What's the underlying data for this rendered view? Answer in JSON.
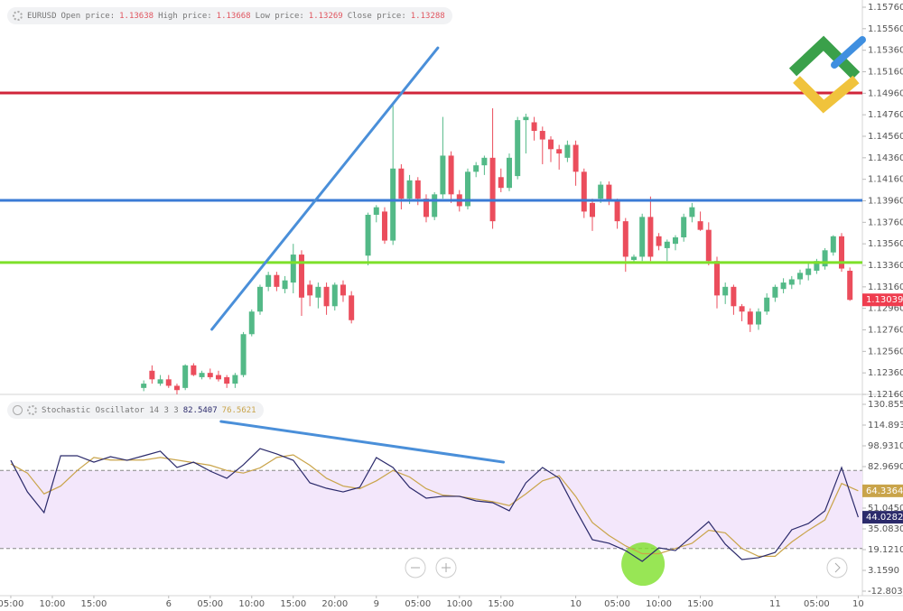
{
  "chart_data": [
    {
      "type": "candlestick",
      "header": {
        "symbol": "EURUSD",
        "fields": [
          {
            "label": "Open price:",
            "value": 1.13638
          },
          {
            "label": "High price:",
            "value": 1.13668
          },
          {
            "label": "Low price:",
            "value": 1.13269
          },
          {
            "label": "Close price:",
            "value": 1.13288
          }
        ]
      },
      "x": [
        16,
        17,
        18,
        19,
        20,
        21,
        22,
        23,
        24,
        25,
        26,
        27,
        28,
        29,
        30,
        31,
        32,
        33,
        34,
        35,
        36,
        37,
        38,
        39,
        40,
        41,
        43,
        44,
        45,
        46,
        47,
        48,
        49,
        50,
        51,
        52,
        53,
        54,
        55,
        56,
        57,
        58,
        59,
        60,
        61,
        62,
        63,
        64,
        65,
        66,
        67,
        68,
        69,
        70,
        71,
        72,
        73,
        74,
        75,
        76,
        77,
        78,
        79,
        80,
        81,
        82,
        83,
        84,
        85,
        86,
        87,
        88,
        89,
        90,
        91,
        92,
        93,
        94,
        95,
        96,
        97,
        98,
        99,
        100,
        101
      ],
      "open": [
        1.1222,
        1.1238,
        1.1226,
        1.123,
        1.1224,
        1.1222,
        1.1243,
        1.1232,
        1.1236,
        1.1234,
        1.1232,
        1.1226,
        1.1234,
        1.1272,
        1.1293,
        1.1316,
        1.1327,
        1.1314,
        1.132,
        1.1346,
        1.1318,
        1.1306,
        1.1316,
        1.1298,
        1.1318,
        1.1308,
        1.1345,
        1.1383,
        1.1386,
        1.1359,
        1.1426,
        1.1398,
        1.1415,
        1.1398,
        1.1381,
        1.1402,
        1.1438,
        1.1402,
        1.1391,
        1.1423,
        1.1429,
        1.1436,
        1.1418,
        1.1408,
        1.1419,
        1.1471,
        1.1469,
        1.1461,
        1.1453,
        1.1444,
        1.1436,
        1.1448,
        1.1423,
        1.1394,
        1.1398,
        1.1411,
        1.1396,
        1.1377,
        1.1341,
        1.1344,
        1.1381,
        1.1363,
        1.1352,
        1.1356,
        1.1362,
        1.1381,
        1.1377,
        1.1369,
        1.134,
        1.1308,
        1.1316,
        1.1298,
        1.1293,
        1.1281,
        1.1293,
        1.1306,
        1.1314,
        1.1318,
        1.1323,
        1.1327,
        1.1331,
        1.1335,
        1.1348,
        1.1363,
        1.1331
      ],
      "high": [
        1.1229,
        1.1243,
        1.1234,
        1.1234,
        1.1226,
        1.1244,
        1.1245,
        1.1238,
        1.124,
        1.1238,
        1.1234,
        1.1236,
        1.1274,
        1.1295,
        1.1318,
        1.133,
        1.133,
        1.1326,
        1.1356,
        1.135,
        1.1322,
        1.132,
        1.132,
        1.132,
        1.1322,
        1.1312,
        1.1385,
        1.1392,
        1.139,
        1.1485,
        1.143,
        1.142,
        1.1418,
        1.1402,
        1.1404,
        1.1474,
        1.1442,
        1.1406,
        1.1426,
        1.1432,
        1.1438,
        1.1482,
        1.1426,
        1.144,
        1.1474,
        1.1477,
        1.1474,
        1.1465,
        1.1456,
        1.1448,
        1.1452,
        1.1452,
        1.1426,
        1.1398,
        1.1414,
        1.1414,
        1.1398,
        1.138,
        1.1346,
        1.1384,
        1.14,
        1.1366,
        1.136,
        1.1364,
        1.1384,
        1.1394,
        1.1386,
        1.1376,
        1.1344,
        1.132,
        1.1318,
        1.13,
        1.1296,
        1.1296,
        1.131,
        1.1318,
        1.1324,
        1.1326,
        1.1332,
        1.1338,
        1.1342,
        1.1352,
        1.1364,
        1.1366,
        1.1334
      ],
      "low": [
        1.1219,
        1.1226,
        1.1224,
        1.1222,
        1.1216,
        1.122,
        1.1233,
        1.123,
        1.123,
        1.1228,
        1.1222,
        1.1222,
        1.1232,
        1.127,
        1.129,
        1.1312,
        1.1312,
        1.131,
        1.131,
        1.1289,
        1.1298,
        1.1296,
        1.129,
        1.1294,
        1.1302,
        1.1282,
        1.1336,
        1.1376,
        1.1356,
        1.1355,
        1.1388,
        1.1393,
        1.1392,
        1.1376,
        1.1378,
        1.1398,
        1.1394,
        1.1386,
        1.1388,
        1.1418,
        1.142,
        1.137,
        1.1404,
        1.1405,
        1.1416,
        1.144,
        1.1452,
        1.143,
        1.1432,
        1.1425,
        1.1432,
        1.141,
        1.138,
        1.1368,
        1.1394,
        1.1392,
        1.137,
        1.133,
        1.1338,
        1.134,
        1.134,
        1.135,
        1.134,
        1.135,
        1.1358,
        1.1376,
        1.1368,
        1.1336,
        1.1296,
        1.13,
        1.129,
        1.1284,
        1.1274,
        1.1276,
        1.129,
        1.1302,
        1.131,
        1.1314,
        1.1318,
        1.1322,
        1.1328,
        1.1332,
        1.1345,
        1.133,
        1.1303
      ],
      "close": [
        1.1226,
        1.123,
        1.123,
        1.1224,
        1.122,
        1.1243,
        1.1234,
        1.1236,
        1.1232,
        1.123,
        1.1226,
        1.1234,
        1.1272,
        1.1293,
        1.1316,
        1.1327,
        1.1316,
        1.1322,
        1.1346,
        1.1306,
        1.1308,
        1.1316,
        1.1298,
        1.1318,
        1.1308,
        1.1285,
        1.1383,
        1.139,
        1.1359,
        1.1426,
        1.1398,
        1.1415,
        1.1398,
        1.1381,
        1.1402,
        1.1438,
        1.1402,
        1.1391,
        1.1423,
        1.1429,
        1.1436,
        1.1377,
        1.1408,
        1.1436,
        1.1471,
        1.1474,
        1.1461,
        1.1453,
        1.1444,
        1.144,
        1.1448,
        1.1423,
        1.1386,
        1.1381,
        1.1411,
        1.1396,
        1.1377,
        1.1344,
        1.1344,
        1.1381,
        1.1344,
        1.1354,
        1.1358,
        1.1362,
        1.1381,
        1.139,
        1.1369,
        1.134,
        1.1308,
        1.1316,
        1.1298,
        1.1293,
        1.1281,
        1.1293,
        1.1306,
        1.1316,
        1.132,
        1.1323,
        1.1329,
        1.1333,
        1.134,
        1.135,
        1.1363,
        1.1333,
        1.13039
      ],
      "up_color": "#53b987",
      "down_color": "#eb4d5c",
      "last_color": "#ef3d4f",
      "xlim": [
        -1.3,
        102.5
      ],
      "ylim": [
        1.1216,
        1.15827
      ],
      "yticks": [
        {
          "value": 1.1576,
          "label": "1.15760"
        },
        {
          "value": 1.1556,
          "label": "1.15560"
        },
        {
          "value": 1.1536,
          "label": "1.15360"
        },
        {
          "value": 1.1516,
          "label": "1.15160"
        },
        {
          "value": 1.1496,
          "label": "1.14960"
        },
        {
          "value": 1.1476,
          "label": "1.14760"
        },
        {
          "value": 1.1456,
          "label": "1.14560"
        },
        {
          "value": 1.1436,
          "label": "1.14360"
        },
        {
          "value": 1.1416,
          "label": "1.14160"
        },
        {
          "value": 1.1396,
          "label": "1.13960"
        },
        {
          "value": 1.1376,
          "label": "1.13760"
        },
        {
          "value": 1.1356,
          "label": "1.13560"
        },
        {
          "value": 1.1336,
          "label": "1.13360"
        },
        {
          "value": 1.1316,
          "label": "1.13160"
        },
        {
          "value": 1.1296,
          "label": "1.12960"
        },
        {
          "value": 1.1276,
          "label": "1.12760"
        },
        {
          "value": 1.1256,
          "label": "1.12560"
        },
        {
          "value": 1.1236,
          "label": "1.12360"
        },
        {
          "value": 1.1216,
          "label": "1.12160"
        }
      ],
      "hlines": [
        {
          "value": 1.14963,
          "color": "#d0243a"
        },
        {
          "value": 1.13964,
          "color": "#3a7bd5"
        },
        {
          "value": 1.13386,
          "color": "#7ee02a"
        }
      ],
      "trendlines": [
        {
          "x": [
            24.2,
            51.4
          ],
          "y": [
            1.12765,
            1.15382
          ],
          "color": "#4a8fd9"
        }
      ]
    },
    {
      "type": "line",
      "header": {
        "name": "Stochastic Oscillator 14 3 3",
        "values": [
          82.5407,
          76.5621
        ]
      },
      "x": [
        0,
        2,
        4,
        6,
        8,
        10,
        12,
        14,
        16,
        18,
        20,
        22,
        24,
        26,
        28,
        30,
        32,
        34,
        36,
        38,
        40,
        42,
        44,
        46,
        48,
        50,
        52,
        54,
        56,
        58,
        60,
        62,
        64,
        66,
        68,
        70,
        72,
        74,
        76,
        78,
        80,
        82,
        84,
        86,
        88,
        90,
        92,
        94,
        96,
        98,
        100,
        102
      ],
      "series": [
        {
          "color": "#2b2a6b",
          "values": [
            87.8,
            63.5,
            47.6,
            91.3,
            91.3,
            86.4,
            90.6,
            87.8,
            91.3,
            94.8,
            82.3,
            86.4,
            79.5,
            74.0,
            84.4,
            96.8,
            92.7,
            87.8,
            70.5,
            66.3,
            63.5,
            67.0,
            89.9,
            82.3,
            67.0,
            58.7,
            60.1,
            60.1,
            56.6,
            55.2,
            49.0,
            70.5,
            82.3,
            74.0,
            49.7,
            26.8,
            24.0,
            18.4,
            10.1,
            20.5,
            18.4,
            29.5,
            40.6,
            23.3,
            11.5,
            12.9,
            17.0,
            34.4,
            39.2,
            49.0,
            82.3,
            44.0282
          ]
        },
        {
          "color": "#c9a44a",
          "values": [
            85,
            78,
            62,
            68,
            80,
            90,
            88,
            88,
            88,
            90,
            88,
            86,
            84,
            80,
            78,
            82,
            90,
            92,
            84,
            74,
            68,
            66,
            72,
            80,
            75,
            66,
            61,
            60,
            58,
            56,
            53,
            62,
            72,
            76,
            60,
            40,
            30,
            22,
            16,
            16,
            20,
            24,
            34,
            32,
            20,
            14,
            14,
            25,
            34,
            42,
            70,
            64.3364
          ]
        }
      ],
      "bands": {
        "values": [
          20,
          80
        ],
        "color": "#f3e7fb"
      },
      "xlim": [
        -1.3,
        102.5
      ],
      "ylim": [
        -16.27,
        138.49
      ],
      "yticks": [
        {
          "value": 130.855,
          "label": "130.8550"
        },
        {
          "value": 114.893,
          "label": "114.8930"
        },
        {
          "value": 98.931,
          "label": "98.9310"
        },
        {
          "value": 82.969,
          "label": "82.9690"
        },
        {
          "value": 51.045,
          "label": "51.0450"
        },
        {
          "value": 35.083,
          "label": "35.0830"
        },
        {
          "value": 19.121,
          "label": "19.1210"
        },
        {
          "value": 3.159,
          "label": "3.1590"
        },
        {
          "value": -12.803,
          "label": "-12.8030"
        }
      ],
      "xticks": [
        {
          "value": 0,
          "label": "05:00"
        },
        {
          "value": 5,
          "label": "10:00"
        },
        {
          "value": 10,
          "label": "15:00"
        },
        {
          "value": 19,
          "label": "6"
        },
        {
          "value": 24,
          "label": "05:00"
        },
        {
          "value": 29,
          "label": "10:00"
        },
        {
          "value": 34,
          "label": "15:00"
        },
        {
          "value": 39,
          "label": "20:00"
        },
        {
          "value": 44,
          "label": "9"
        },
        {
          "value": 49,
          "label": "05:00"
        },
        {
          "value": 54,
          "label": "10:00"
        },
        {
          "value": 59,
          "label": "15:00"
        },
        {
          "value": 68,
          "label": "10"
        },
        {
          "value": 73,
          "label": "05:00"
        },
        {
          "value": 78,
          "label": "10:00"
        },
        {
          "value": 83,
          "label": "15:00"
        },
        {
          "value": 92,
          "label": "11"
        },
        {
          "value": 97,
          "label": "05:00"
        },
        {
          "value": 102,
          "label": "10"
        }
      ],
      "trendlines": [
        {
          "x": [
            25.3,
            59.3
          ],
          "y": [
            117.7,
            86.4
          ],
          "color": "#4a8fd9"
        }
      ],
      "circle": {
        "x": 76.1,
        "y": 8.0,
        "color": "#7ee02a"
      }
    }
  ]
}
